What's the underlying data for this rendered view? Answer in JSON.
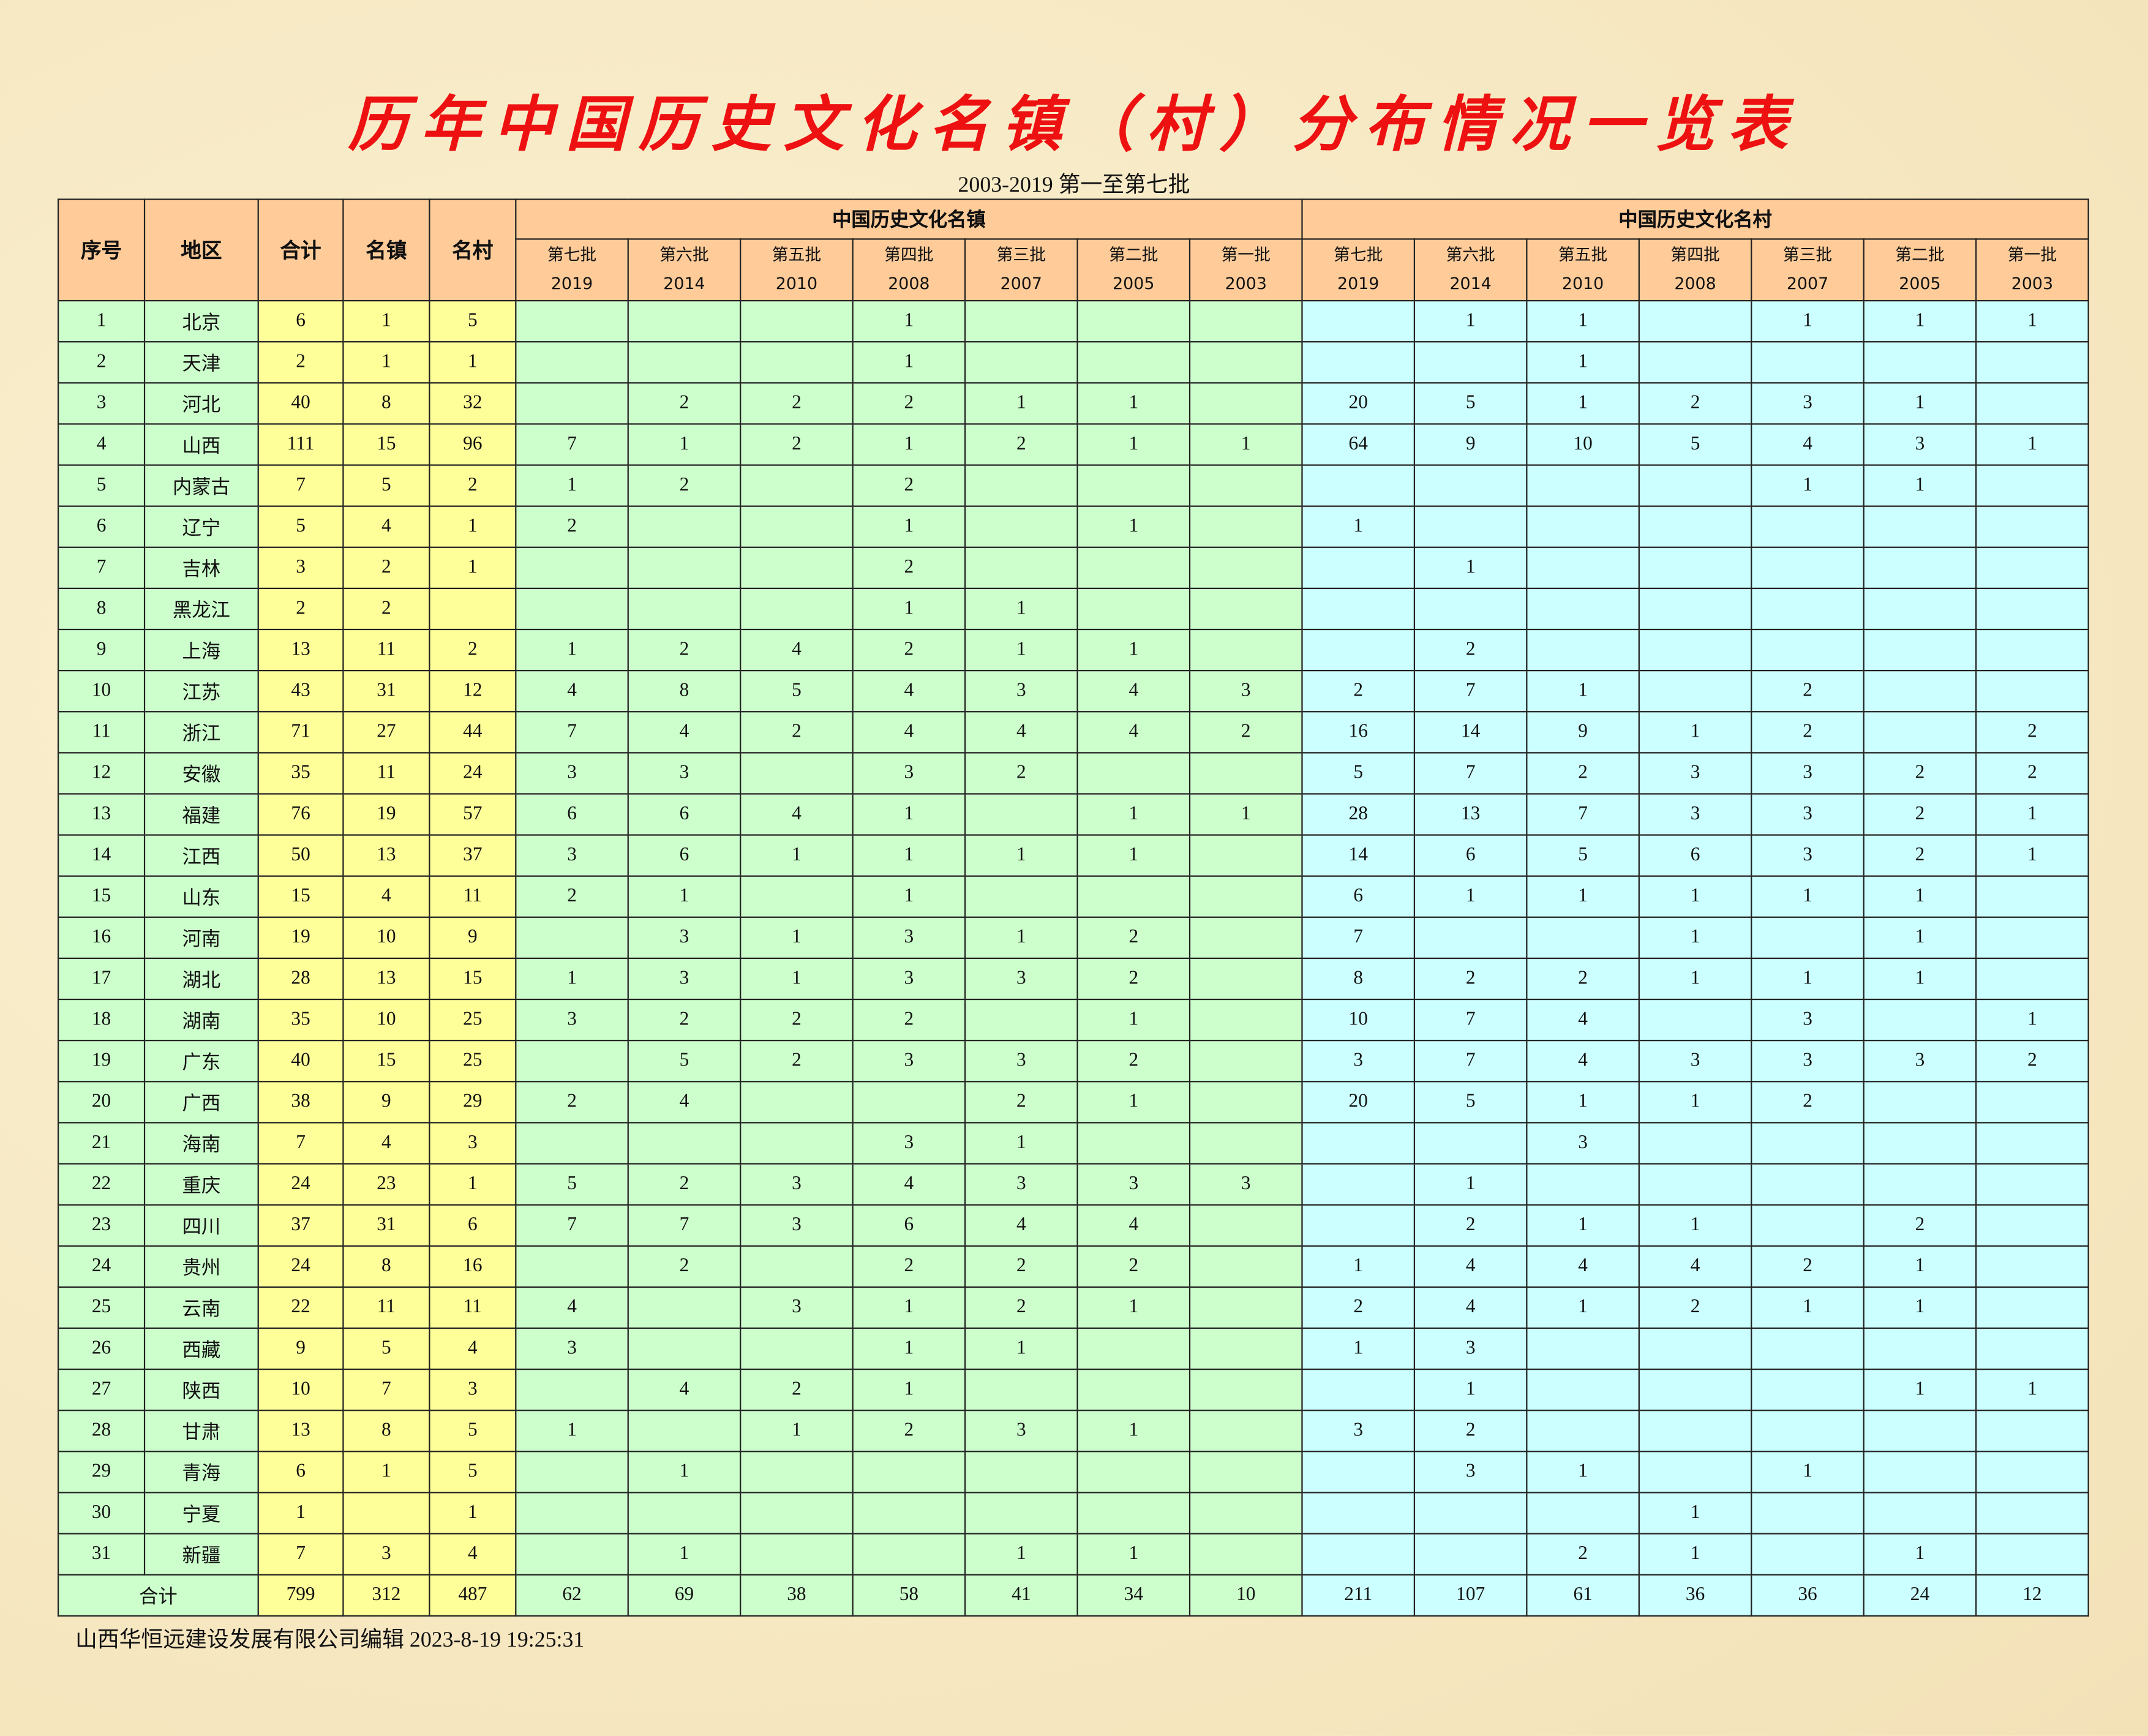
{
  "title": "历年中国历史文化名镇（村）分布情况一览表",
  "subtitle": "2003-2019 第一至第七批",
  "footer": "山西华恒远建设发展有限公司编辑  2023-8-19 19:25:31",
  "headers": {
    "seq": "序号",
    "region": "地区",
    "total": "合计",
    "towns": "名镇",
    "villages": "名村",
    "town_group": "中国历史文化名镇",
    "village_group": "中国历史文化名村",
    "batches": [
      {
        "label": "第七批",
        "year": "2019"
      },
      {
        "label": "第六批",
        "year": "2014"
      },
      {
        "label": "第五批",
        "year": "2010"
      },
      {
        "label": "第四批",
        "year": "2008"
      },
      {
        "label": "第三批",
        "year": "2007"
      },
      {
        "label": "第二批",
        "year": "2005"
      },
      {
        "label": "第一批",
        "year": "2003"
      }
    ]
  },
  "colors": {
    "header": "#ffcc99",
    "town_area": "#ccffcc",
    "totals_area": "#ffff99",
    "village_area": "#ccffff",
    "title": "#ee1111"
  },
  "rows": [
    {
      "seq": "1",
      "region": "北京",
      "total": "6",
      "towns": "1",
      "villages": "5",
      "town_batches": [
        "",
        "",
        "",
        "1",
        "",
        "",
        ""
      ],
      "village_batches": [
        "",
        "1",
        "1",
        "",
        "1",
        "1",
        "1"
      ]
    },
    {
      "seq": "2",
      "region": "天津",
      "total": "2",
      "towns": "1",
      "villages": "1",
      "town_batches": [
        "",
        "",
        "",
        "1",
        "",
        "",
        ""
      ],
      "village_batches": [
        "",
        "",
        "1",
        "",
        "",
        "",
        ""
      ]
    },
    {
      "seq": "3",
      "region": "河北",
      "total": "40",
      "towns": "8",
      "villages": "32",
      "town_batches": [
        "",
        "2",
        "2",
        "2",
        "1",
        "1",
        ""
      ],
      "village_batches": [
        "20",
        "5",
        "1",
        "2",
        "3",
        "1",
        ""
      ]
    },
    {
      "seq": "4",
      "region": "山西",
      "total": "111",
      "towns": "15",
      "villages": "96",
      "town_batches": [
        "7",
        "1",
        "2",
        "1",
        "2",
        "1",
        "1"
      ],
      "village_batches": [
        "64",
        "9",
        "10",
        "5",
        "4",
        "3",
        "1"
      ]
    },
    {
      "seq": "5",
      "region": "内蒙古",
      "total": "7",
      "towns": "5",
      "villages": "2",
      "town_batches": [
        "1",
        "2",
        "",
        "2",
        "",
        "",
        ""
      ],
      "village_batches": [
        "",
        "",
        "",
        "",
        "1",
        "1",
        ""
      ]
    },
    {
      "seq": "6",
      "region": "辽宁",
      "total": "5",
      "towns": "4",
      "villages": "1",
      "town_batches": [
        "2",
        "",
        "",
        "1",
        "",
        "1",
        ""
      ],
      "village_batches": [
        "1",
        "",
        "",
        "",
        "",
        "",
        ""
      ]
    },
    {
      "seq": "7",
      "region": "吉林",
      "total": "3",
      "towns": "2",
      "villages": "1",
      "town_batches": [
        "",
        "",
        "",
        "2",
        "",
        "",
        ""
      ],
      "village_batches": [
        "",
        "1",
        "",
        "",
        "",
        "",
        ""
      ]
    },
    {
      "seq": "8",
      "region": "黑龙江",
      "total": "2",
      "towns": "2",
      "villages": "",
      "town_batches": [
        "",
        "",
        "",
        "1",
        "1",
        "",
        ""
      ],
      "village_batches": [
        "",
        "",
        "",
        "",
        "",
        "",
        ""
      ]
    },
    {
      "seq": "9",
      "region": "上海",
      "total": "13",
      "towns": "11",
      "villages": "2",
      "town_batches": [
        "1",
        "2",
        "4",
        "2",
        "1",
        "1",
        ""
      ],
      "village_batches": [
        "",
        "2",
        "",
        "",
        "",
        "",
        ""
      ]
    },
    {
      "seq": "10",
      "region": "江苏",
      "total": "43",
      "towns": "31",
      "villages": "12",
      "town_batches": [
        "4",
        "8",
        "5",
        "4",
        "3",
        "4",
        "3"
      ],
      "village_batches": [
        "2",
        "7",
        "1",
        "",
        "2",
        "",
        ""
      ]
    },
    {
      "seq": "11",
      "region": "浙江",
      "total": "71",
      "towns": "27",
      "villages": "44",
      "town_batches": [
        "7",
        "4",
        "2",
        "4",
        "4",
        "4",
        "2"
      ],
      "village_batches": [
        "16",
        "14",
        "9",
        "1",
        "2",
        "",
        "2"
      ]
    },
    {
      "seq": "12",
      "region": "安徽",
      "total": "35",
      "towns": "11",
      "villages": "24",
      "town_batches": [
        "3",
        "3",
        "",
        "3",
        "2",
        "",
        ""
      ],
      "village_batches": [
        "5",
        "7",
        "2",
        "3",
        "3",
        "2",
        "2"
      ]
    },
    {
      "seq": "13",
      "region": "福建",
      "total": "76",
      "towns": "19",
      "villages": "57",
      "town_batches": [
        "6",
        "6",
        "4",
        "1",
        "",
        "1",
        "1"
      ],
      "village_batches": [
        "28",
        "13",
        "7",
        "3",
        "3",
        "2",
        "1"
      ]
    },
    {
      "seq": "14",
      "region": "江西",
      "total": "50",
      "towns": "13",
      "villages": "37",
      "town_batches": [
        "3",
        "6",
        "1",
        "1",
        "1",
        "1",
        ""
      ],
      "village_batches": [
        "14",
        "6",
        "5",
        "6",
        "3",
        "2",
        "1"
      ]
    },
    {
      "seq": "15",
      "region": "山东",
      "total": "15",
      "towns": "4",
      "villages": "11",
      "town_batches": [
        "2",
        "1",
        "",
        "1",
        "",
        "",
        ""
      ],
      "village_batches": [
        "6",
        "1",
        "1",
        "1",
        "1",
        "1",
        ""
      ]
    },
    {
      "seq": "16",
      "region": "河南",
      "total": "19",
      "towns": "10",
      "villages": "9",
      "town_batches": [
        "",
        "3",
        "1",
        "3",
        "1",
        "2",
        ""
      ],
      "village_batches": [
        "7",
        "",
        "",
        "1",
        "",
        "1",
        ""
      ]
    },
    {
      "seq": "17",
      "region": "湖北",
      "total": "28",
      "towns": "13",
      "villages": "15",
      "town_batches": [
        "1",
        "3",
        "1",
        "3",
        "3",
        "2",
        ""
      ],
      "village_batches": [
        "8",
        "2",
        "2",
        "1",
        "1",
        "1",
        ""
      ]
    },
    {
      "seq": "18",
      "region": "湖南",
      "total": "35",
      "towns": "10",
      "villages": "25",
      "town_batches": [
        "3",
        "2",
        "2",
        "2",
        "",
        "1",
        ""
      ],
      "village_batches": [
        "10",
        "7",
        "4",
        "",
        "3",
        "",
        "1"
      ]
    },
    {
      "seq": "19",
      "region": "广东",
      "total": "40",
      "towns": "15",
      "villages": "25",
      "town_batches": [
        "",
        "5",
        "2",
        "3",
        "3",
        "2",
        ""
      ],
      "village_batches": [
        "3",
        "7",
        "4",
        "3",
        "3",
        "3",
        "2"
      ]
    },
    {
      "seq": "20",
      "region": "广西",
      "total": "38",
      "towns": "9",
      "villages": "29",
      "town_batches": [
        "2",
        "4",
        "",
        "",
        "2",
        "1",
        ""
      ],
      "village_batches": [
        "20",
        "5",
        "1",
        "1",
        "2",
        "",
        ""
      ]
    },
    {
      "seq": "21",
      "region": "海南",
      "total": "7",
      "towns": "4",
      "villages": "3",
      "town_batches": [
        "",
        "",
        "",
        "3",
        "1",
        "",
        ""
      ],
      "village_batches": [
        "",
        "",
        "3",
        "",
        "",
        "",
        ""
      ]
    },
    {
      "seq": "22",
      "region": "重庆",
      "total": "24",
      "towns": "23",
      "villages": "1",
      "town_batches": [
        "5",
        "2",
        "3",
        "4",
        "3",
        "3",
        "3"
      ],
      "village_batches": [
        "",
        "1",
        "",
        "",
        "",
        "",
        ""
      ]
    },
    {
      "seq": "23",
      "region": "四川",
      "total": "37",
      "towns": "31",
      "villages": "6",
      "town_batches": [
        "7",
        "7",
        "3",
        "6",
        "4",
        "4",
        ""
      ],
      "village_batches": [
        "",
        "2",
        "1",
        "1",
        "",
        "2",
        ""
      ]
    },
    {
      "seq": "24",
      "region": "贵州",
      "total": "24",
      "towns": "8",
      "villages": "16",
      "town_batches": [
        "",
        "2",
        "",
        "2",
        "2",
        "2",
        ""
      ],
      "village_batches": [
        "1",
        "4",
        "4",
        "4",
        "2",
        "1",
        ""
      ]
    },
    {
      "seq": "25",
      "region": "云南",
      "total": "22",
      "towns": "11",
      "villages": "11",
      "town_batches": [
        "4",
        "",
        "3",
        "1",
        "2",
        "1",
        ""
      ],
      "village_batches": [
        "2",
        "4",
        "1",
        "2",
        "1",
        "1",
        ""
      ]
    },
    {
      "seq": "26",
      "region": "西藏",
      "total": "9",
      "towns": "5",
      "villages": "4",
      "town_batches": [
        "3",
        "",
        "",
        "1",
        "1",
        "",
        ""
      ],
      "village_batches": [
        "1",
        "3",
        "",
        "",
        "",
        "",
        ""
      ]
    },
    {
      "seq": "27",
      "region": "陕西",
      "total": "10",
      "towns": "7",
      "villages": "3",
      "town_batches": [
        "",
        "4",
        "2",
        "1",
        "",
        "",
        ""
      ],
      "village_batches": [
        "",
        "1",
        "",
        "",
        "",
        "1",
        "1"
      ]
    },
    {
      "seq": "28",
      "region": "甘肃",
      "total": "13",
      "towns": "8",
      "villages": "5",
      "town_batches": [
        "1",
        "",
        "1",
        "2",
        "3",
        "1",
        ""
      ],
      "village_batches": [
        "3",
        "2",
        "",
        "",
        "",
        "",
        ""
      ]
    },
    {
      "seq": "29",
      "region": "青海",
      "total": "6",
      "towns": "1",
      "villages": "5",
      "town_batches": [
        "",
        "1",
        "",
        "",
        "",
        "",
        ""
      ],
      "village_batches": [
        "",
        "3",
        "1",
        "",
        "1",
        "",
        ""
      ]
    },
    {
      "seq": "30",
      "region": "宁夏",
      "total": "1",
      "towns": "",
      "villages": "1",
      "town_batches": [
        "",
        "",
        "",
        "",
        "",
        "",
        ""
      ],
      "village_batches": [
        "",
        "",
        "",
        "1",
        "",
        "",
        ""
      ]
    },
    {
      "seq": "31",
      "region": "新疆",
      "total": "7",
      "towns": "3",
      "villages": "4",
      "town_batches": [
        "",
        "1",
        "",
        "",
        "1",
        "1",
        ""
      ],
      "village_batches": [
        "",
        "",
        "2",
        "1",
        "",
        "1",
        ""
      ]
    }
  ],
  "totals": {
    "label": "合计",
    "total": "799",
    "towns": "312",
    "villages": "487",
    "town_batches": [
      "62",
      "69",
      "38",
      "58",
      "41",
      "34",
      "10"
    ],
    "village_batches": [
      "211",
      "107",
      "61",
      "36",
      "36",
      "24",
      "12"
    ]
  }
}
